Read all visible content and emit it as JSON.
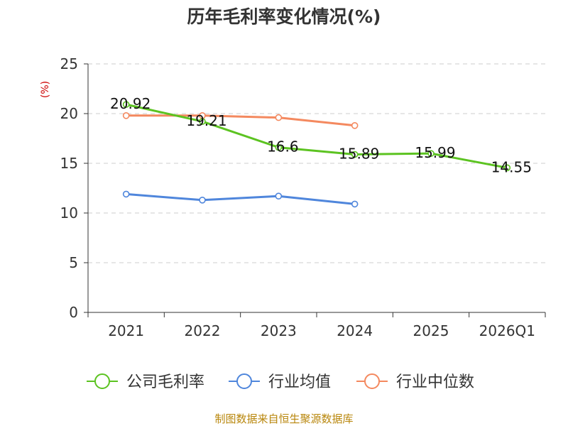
{
  "chart_data": {
    "type": "line",
    "title": "历年毛利率变化情况(%)",
    "ylabel": "(%)",
    "xlabel": "",
    "categories": [
      "2021",
      "2022",
      "2023",
      "2024",
      "2025",
      "2026Q1"
    ],
    "ylim": [
      0,
      25
    ],
    "yticks": [
      "0",
      "5",
      "10",
      "15",
      "20",
      "25"
    ],
    "grid": true,
    "legend_position": "bottom",
    "series": [
      {
        "name": "公司毛利率",
        "color": "#5cc321",
        "values": [
          20.92,
          19.21,
          16.6,
          15.89,
          15.99,
          14.55
        ],
        "labels": [
          "20.92",
          "19.21",
          "16.6",
          "15.89",
          "15.99",
          "14.55"
        ]
      },
      {
        "name": "行业均值",
        "color": "#4f86dc",
        "values": [
          11.9,
          11.3,
          11.7,
          10.9,
          null,
          null
        ]
      },
      {
        "name": "行业中位数",
        "color": "#f4895f",
        "values": [
          19.8,
          19.8,
          19.6,
          18.8,
          null,
          null
        ]
      }
    ]
  },
  "ylabel_color": "#cc0000",
  "source": {
    "text": "制图数据来自恒生聚源数据库",
    "color": "#b8860b"
  }
}
